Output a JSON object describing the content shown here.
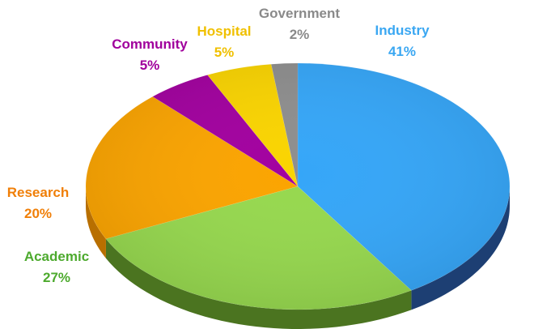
{
  "chart_data": {
    "type": "pie",
    "style": "3d",
    "title": "",
    "legend": "none",
    "slices": [
      {
        "name": "Industry",
        "value": 41,
        "label": "41%",
        "color": "#35a6f8",
        "side_color": "#1d3f73"
      },
      {
        "name": "Academic",
        "value": 27,
        "label": "27%",
        "color": "#96d84e",
        "side_color": "#4b7420"
      },
      {
        "name": "Research",
        "value": 20,
        "label": "20%",
        "color": "#fba400",
        "side_color": "#b86f00"
      },
      {
        "name": "Community",
        "value": 5,
        "label": "5%",
        "color": "#a2009f",
        "side_color": "#5e005c"
      },
      {
        "name": "Hospital",
        "value": 5,
        "label": "5%",
        "color": "#fad400",
        "side_color": "#a88d00"
      },
      {
        "name": "Government",
        "value": 2,
        "label": "2%",
        "color": "#8e8e8e",
        "side_color": "#555555"
      }
    ],
    "label_colors": {
      "Industry": "#3aa7f2",
      "Academic": "#4daa2e",
      "Research": "#f07f08",
      "Community": "#a0009c",
      "Hospital": "#f0c000",
      "Government": "#8a8a8a"
    }
  }
}
